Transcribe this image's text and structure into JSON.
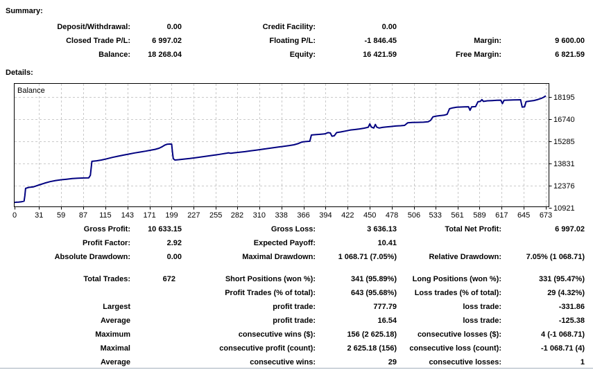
{
  "summary": {
    "heading": "Summary:",
    "rows": [
      [
        "Deposit/Withdrawal:",
        "0.00",
        "Credit Facility:",
        "0.00",
        "",
        ""
      ],
      [
        "Closed Trade P/L:",
        "6 997.02",
        "Floating P/L:",
        "-1 846.45",
        "Margin:",
        "9 600.00"
      ],
      [
        "Balance:",
        "18 268.04",
        "Equity:",
        "16 421.59",
        "Free Margin:",
        "6 821.59"
      ]
    ]
  },
  "details": {
    "heading": "Details:",
    "rows_top": [
      [
        "Gross Profit:",
        "10 633.15",
        "Gross Loss:",
        "3 636.13",
        "Total Net Profit:",
        "6 997.02"
      ],
      [
        "Profit Factor:",
        "2.92",
        "Expected Payoff:",
        "10.41",
        "",
        ""
      ],
      [
        "Absolute Drawdown:",
        "0.00",
        "Maximal Drawdown:",
        "1 068.71 (7.05%)",
        "Relative Drawdown:",
        "7.05% (1 068.71)"
      ]
    ],
    "rows_bottom": [
      [
        "Total Trades:",
        "672",
        "Short Positions (won %):",
        "341 (95.89%)",
        "Long Positions (won %):",
        "331 (95.47%)"
      ],
      [
        "",
        "",
        "Profit Trades (% of total):",
        "643 (95.68%)",
        "Loss trades (% of total):",
        "29 (4.32%)"
      ],
      [
        "Largest",
        "",
        "profit trade:",
        "777.79",
        "loss trade:",
        "-331.86"
      ],
      [
        "Average",
        "",
        "profit trade:",
        "16.54",
        "loss trade:",
        "-125.38"
      ],
      [
        "Maximum",
        "",
        "consecutive wins ($):",
        "156 (2 625.18)",
        "consecutive losses ($):",
        "4 (-1 068.71)"
      ],
      [
        "Maximal",
        "",
        "consecutive profit (count):",
        "2 625.18 (156)",
        "consecutive loss (count):",
        "-1 068.71 (4)"
      ],
      [
        "Average",
        "",
        "consecutive wins:",
        "29",
        "consecutive losses:",
        "1"
      ]
    ]
  },
  "chart_data": {
    "type": "line",
    "title": "Balance",
    "legend": [
      "Balance"
    ],
    "xlim": [
      0,
      673
    ],
    "x_ticks": [
      0,
      31,
      59,
      87,
      115,
      143,
      171,
      199,
      227,
      255,
      282,
      310,
      338,
      366,
      394,
      422,
      450,
      478,
      506,
      533,
      561,
      589,
      617,
      645,
      673
    ],
    "y_ticks": [
      10921,
      12376,
      13831,
      15285,
      16740,
      18195
    ],
    "line_color": "#000080",
    "grid_color": "#c9c9c9",
    "curve_points": [
      [
        0,
        11271
      ],
      [
        2,
        11290
      ],
      [
        5,
        11300
      ],
      [
        9,
        11320
      ],
      [
        12,
        11360
      ],
      [
        13,
        11700
      ],
      [
        14,
        12200
      ],
      [
        18,
        12260
      ],
      [
        24,
        12300
      ],
      [
        31,
        12420
      ],
      [
        38,
        12540
      ],
      [
        45,
        12640
      ],
      [
        52,
        12710
      ],
      [
        59,
        12760
      ],
      [
        66,
        12800
      ],
      [
        73,
        12840
      ],
      [
        80,
        12865
      ],
      [
        88,
        12880
      ],
      [
        94,
        12890
      ],
      [
        96,
        13060
      ],
      [
        98,
        13970
      ],
      [
        104,
        14010
      ],
      [
        110,
        14060
      ],
      [
        117,
        14140
      ],
      [
        124,
        14230
      ],
      [
        131,
        14310
      ],
      [
        138,
        14380
      ],
      [
        145,
        14450
      ],
      [
        152,
        14520
      ],
      [
        159,
        14580
      ],
      [
        166,
        14640
      ],
      [
        172,
        14700
      ],
      [
        178,
        14760
      ],
      [
        183,
        14830
      ],
      [
        187,
        14930
      ],
      [
        190,
        15030
      ],
      [
        193,
        15090
      ],
      [
        197,
        15110
      ],
      [
        199,
        15100
      ],
      [
        200,
        14600
      ],
      [
        201,
        14150
      ],
      [
        203,
        14060
      ],
      [
        208,
        14080
      ],
      [
        215,
        14120
      ],
      [
        222,
        14160
      ],
      [
        229,
        14210
      ],
      [
        236,
        14260
      ],
      [
        243,
        14310
      ],
      [
        250,
        14360
      ],
      [
        257,
        14410
      ],
      [
        263,
        14460
      ],
      [
        268,
        14500
      ],
      [
        271,
        14530
      ],
      [
        274,
        14500
      ],
      [
        278,
        14530
      ],
      [
        285,
        14570
      ],
      [
        292,
        14610
      ],
      [
        299,
        14660
      ],
      [
        306,
        14710
      ],
      [
        313,
        14760
      ],
      [
        320,
        14810
      ],
      [
        327,
        14860
      ],
      [
        334,
        14910
      ],
      [
        341,
        14960
      ],
      [
        348,
        15010
      ],
      [
        354,
        15060
      ],
      [
        359,
        15130
      ],
      [
        363,
        15220
      ],
      [
        366,
        15260
      ],
      [
        370,
        15275
      ],
      [
        374,
        15290
      ],
      [
        376,
        15700
      ],
      [
        381,
        15720
      ],
      [
        387,
        15745
      ],
      [
        393,
        15770
      ],
      [
        397,
        15860
      ],
      [
        400,
        15830
      ],
      [
        402,
        15620
      ],
      [
        405,
        15650
      ],
      [
        408,
        15860
      ],
      [
        413,
        15900
      ],
      [
        419,
        15960
      ],
      [
        425,
        16020
      ],
      [
        431,
        16060
      ],
      [
        437,
        16100
      ],
      [
        443,
        16150
      ],
      [
        448,
        16210
      ],
      [
        450,
        16430
      ],
      [
        452,
        16220
      ],
      [
        455,
        16160
      ],
      [
        457,
        16390
      ],
      [
        459,
        16210
      ],
      [
        462,
        16160
      ],
      [
        466,
        16200
      ],
      [
        471,
        16230
      ],
      [
        477,
        16260
      ],
      [
        483,
        16290
      ],
      [
        489,
        16310
      ],
      [
        494,
        16330
      ],
      [
        498,
        16500
      ],
      [
        504,
        16520
      ],
      [
        511,
        16530
      ],
      [
        518,
        16540
      ],
      [
        524,
        16570
      ],
      [
        527,
        16660
      ],
      [
        530,
        16890
      ],
      [
        534,
        16940
      ],
      [
        539,
        16970
      ],
      [
        544,
        17000
      ],
      [
        548,
        17060
      ],
      [
        551,
        17420
      ],
      [
        555,
        17480
      ],
      [
        560,
        17520
      ],
      [
        565,
        17535
      ],
      [
        570,
        17545
      ],
      [
        575,
        17555
      ],
      [
        577,
        17320
      ],
      [
        579,
        17545
      ],
      [
        584,
        17565
      ],
      [
        587,
        17880
      ],
      [
        590,
        17905
      ],
      [
        592,
        18020
      ],
      [
        594,
        17905
      ],
      [
        599,
        17945
      ],
      [
        605,
        17960
      ],
      [
        611,
        17975
      ],
      [
        616,
        17985
      ],
      [
        618,
        17760
      ],
      [
        620,
        17975
      ],
      [
        626,
        17990
      ],
      [
        632,
        18000
      ],
      [
        638,
        18010
      ],
      [
        641,
        18015
      ],
      [
        643,
        17530
      ],
      [
        646,
        17545
      ],
      [
        648,
        17890
      ],
      [
        653,
        17925
      ],
      [
        658,
        17965
      ],
      [
        663,
        18030
      ],
      [
        667,
        18100
      ],
      [
        670,
        18170
      ],
      [
        673,
        18268
      ]
    ]
  }
}
